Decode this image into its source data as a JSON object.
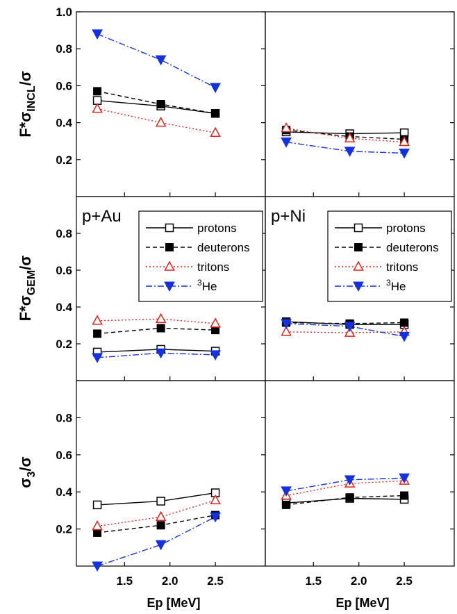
{
  "chart_data": {
    "type": "line",
    "layout": "3x2 grid of panels sharing x axis; rows share y axis",
    "x": [
      1.2,
      1.9,
      2.5
    ],
    "xticks": [
      "1.5",
      "2.0",
      "2.5"
    ],
    "xtick_values": [
      1.5,
      2.0,
      2.5
    ],
    "xlim": [
      0.97,
      3.05
    ],
    "xlabel": "Ep [MeV]",
    "legend_labels": [
      "protons",
      "deuterons",
      "tritons",
      "3He"
    ],
    "rows": [
      {
        "ylabel_main": "F*σ",
        "ylabel_sub": "INCL",
        "ylabel_tail": "/σ",
        "ylim": [
          0.0,
          1.0
        ],
        "yticks": [
          "0.2",
          "0.4",
          "0.6",
          "0.8",
          "1.0"
        ],
        "ytick_values": [
          0.2,
          0.4,
          0.6,
          0.8,
          1.0
        ],
        "panels": [
          {
            "label": "",
            "series": [
              {
                "name": "protons",
                "values": [
                  0.52,
                  0.49,
                  0.45
                ]
              },
              {
                "name": "deuterons",
                "values": [
                  0.57,
                  0.5,
                  0.45
                ]
              },
              {
                "name": "tritons",
                "values": [
                  0.475,
                  0.4,
                  0.345
                ]
              },
              {
                "name": "3He",
                "values": [
                  0.88,
                  0.74,
                  0.59
                ]
              }
            ]
          },
          {
            "label": "",
            "series": [
              {
                "name": "protons",
                "values": [
                  0.35,
                  0.34,
                  0.345
                ]
              },
              {
                "name": "deuterons",
                "values": [
                  0.36,
                  0.325,
                  0.31
                ]
              },
              {
                "name": "tritons",
                "values": [
                  0.37,
                  0.315,
                  0.295
                ]
              },
              {
                "name": "3He",
                "values": [
                  0.295,
                  0.245,
                  0.235
                ]
              }
            ]
          }
        ]
      },
      {
        "ylabel_main": "F*σ",
        "ylabel_sub": "GEM",
        "ylabel_tail": "/σ",
        "ylim": [
          0.0,
          1.0
        ],
        "yticks": [
          "0.2",
          "0.4",
          "0.6",
          "0.8"
        ],
        "ytick_values": [
          0.2,
          0.4,
          0.6,
          0.8
        ],
        "panels": [
          {
            "label": "p+Au",
            "series": [
              {
                "name": "protons",
                "values": [
                  0.155,
                  0.17,
                  0.16
                ]
              },
              {
                "name": "deuterons",
                "values": [
                  0.255,
                  0.285,
                  0.275
                ]
              },
              {
                "name": "tritons",
                "values": [
                  0.325,
                  0.335,
                  0.31
                ]
              },
              {
                "name": "3He",
                "values": [
                  0.125,
                  0.15,
                  0.14
                ]
              }
            ]
          },
          {
            "label": "p+Ni",
            "series": [
              {
                "name": "protons",
                "values": [
                  0.32,
                  0.305,
                  0.305
                ]
              },
              {
                "name": "deuterons",
                "values": [
                  0.315,
                  0.31,
                  0.315
                ]
              },
              {
                "name": "tritons",
                "values": [
                  0.265,
                  0.26,
                  0.265
                ]
              },
              {
                "name": "3He",
                "values": [
                  0.31,
                  0.295,
                  0.24
                ]
              }
            ]
          }
        ]
      },
      {
        "ylabel_main": "σ",
        "ylabel_sub": "3",
        "ylabel_tail": "/σ",
        "ylim": [
          0.0,
          1.0
        ],
        "yticks": [
          "0.2",
          "0.4",
          "0.6",
          "0.8"
        ],
        "ytick_values": [
          0.2,
          0.4,
          0.6,
          0.8
        ],
        "panels": [
          {
            "label": "",
            "series": [
              {
                "name": "protons",
                "values": [
                  0.33,
                  0.35,
                  0.395
                ]
              },
              {
                "name": "deuterons",
                "values": [
                  0.18,
                  0.22,
                  0.275
                ]
              },
              {
                "name": "tritons",
                "values": [
                  0.215,
                  0.265,
                  0.355
                ]
              },
              {
                "name": "3He",
                "values": [
                  0.0,
                  0.115,
                  0.265
                ]
              }
            ]
          },
          {
            "label": "",
            "series": [
              {
                "name": "protons",
                "values": [
                  0.34,
                  0.365,
                  0.36
                ]
              },
              {
                "name": "deuterons",
                "values": [
                  0.33,
                  0.37,
                  0.38
                ]
              },
              {
                "name": "tritons",
                "values": [
                  0.38,
                  0.445,
                  0.46
                ]
              },
              {
                "name": "3He",
                "values": [
                  0.405,
                  0.465,
                  0.475
                ]
              }
            ]
          }
        ]
      }
    ],
    "styles": {
      "protons": {
        "color": "#000000",
        "dash": "",
        "marker": "open-square"
      },
      "deuterons": {
        "color": "#000000",
        "dash": "6,4",
        "marker": "filled-square"
      },
      "tritons": {
        "color": "#e8221b",
        "dash": "2,3",
        "marker": "open-triangle-up"
      },
      "3He": {
        "color": "#1431e0",
        "dash": "9,3,2,3",
        "marker": "filled-triangle-down"
      }
    }
  }
}
